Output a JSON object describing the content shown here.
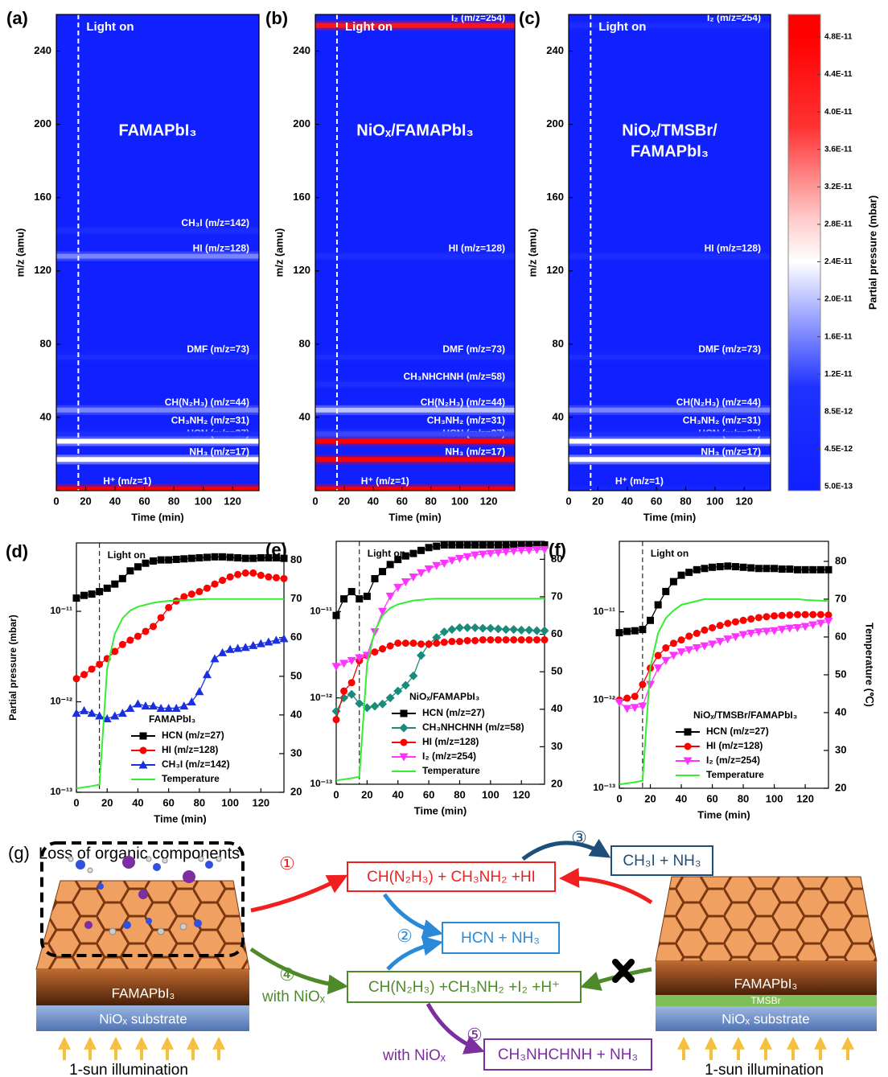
{
  "chart_data": [
    {
      "type": "heatmap",
      "panel": "(a)",
      "title_lines": [
        "FAMAPbI₃"
      ],
      "xlabel": "Time (min)",
      "ylabel": "m/z (amu)",
      "xlim": [
        0,
        138
      ],
      "xticks": [
        0,
        20,
        40,
        60,
        80,
        100,
        120
      ],
      "ylim": [
        0,
        260
      ],
      "yticks": [
        40,
        80,
        120,
        160,
        200,
        240
      ],
      "light_on": 15,
      "light_label": "Light on",
      "bands": [
        {
          "mz": 1,
          "label": "H⁺ (m/z=1)",
          "pressure": 4.8e-11
        },
        {
          "mz": 17,
          "label": "NH₃ (m/z=17)",
          "pressure": 2.4e-11
        },
        {
          "mz": 27,
          "label": "HCN  (m/z=27)",
          "pressure": 2.4e-11
        },
        {
          "mz": 31,
          "label": "CH₃NH₂ (m/z=31)",
          "pressure": 8.5e-12
        },
        {
          "mz": 44,
          "label": "CH(N₂H₃) (m/z=44)",
          "pressure": 1.6e-11
        },
        {
          "mz": 73,
          "label": "DMF (m/z=73)",
          "pressure": 8.5e-12
        },
        {
          "mz": 128,
          "label": "HI (m/z=128)",
          "pressure": 1.6e-11
        },
        {
          "mz": 142,
          "label": "CH₃I (m/z=142)",
          "pressure": 8.5e-12
        }
      ]
    },
    {
      "type": "heatmap",
      "panel": "(b)",
      "title_lines": [
        "NiOₓ/FAMAPbI₃"
      ],
      "xlabel": "Time (min)",
      "ylabel": "m/z (amu)",
      "xlim": [
        0,
        138
      ],
      "xticks": [
        0,
        20,
        40,
        60,
        80,
        100,
        120
      ],
      "ylim": [
        0,
        260
      ],
      "yticks": [
        40,
        80,
        120,
        160,
        200,
        240
      ],
      "light_on": 15,
      "light_label": "Light on",
      "bands": [
        {
          "mz": 1,
          "label": "H⁺ (m/z=1)",
          "pressure": 4.8e-11
        },
        {
          "mz": 17,
          "label": "NH₃ (m/z=17)",
          "pressure": 4.8e-11
        },
        {
          "mz": 27,
          "label": "HCN (m/z=27)",
          "pressure": 4.8e-11
        },
        {
          "mz": 31,
          "label": "CH₃NH₂ (m/z=31)",
          "pressure": 1.2e-11
        },
        {
          "mz": 44,
          "label": "CH(N₂H₃) (m/z=44)",
          "pressure": 2e-11
        },
        {
          "mz": 58,
          "label": "CH₃NHCHNH (m/z=58)",
          "pressure": 8.5e-12
        },
        {
          "mz": 73,
          "label": "DMF (m/z=73)",
          "pressure": 8.5e-12
        },
        {
          "mz": 128,
          "label": "HI (m/z=128)",
          "pressure": 8.5e-12
        },
        {
          "mz": 254,
          "label": "I₂ (m/z=254)",
          "pressure": 4.4e-11
        }
      ]
    },
    {
      "type": "heatmap",
      "panel": "(c)",
      "title_lines": [
        "NiOₓ/TMSBr/",
        "FAMAPbI₃"
      ],
      "xlabel": "Time (min)",
      "ylabel": "m/z (amu)",
      "xlim": [
        0,
        138
      ],
      "xticks": [
        0,
        20,
        40,
        60,
        80,
        100,
        120
      ],
      "ylim": [
        0,
        260
      ],
      "yticks": [
        40,
        80,
        120,
        160,
        200,
        240
      ],
      "light_on": 15,
      "light_label": "Light on",
      "bands": [
        {
          "mz": 1,
          "label": "H⁺ (m/z=1)",
          "pressure": 4.5e-12
        },
        {
          "mz": 17,
          "label": "NH₃ (m/z=17)",
          "pressure": 2.4e-11
        },
        {
          "mz": 27,
          "label": "HCN (m/z=27)",
          "pressure": 2.4e-11
        },
        {
          "mz": 31,
          "label": "CH₃NH₂ (m/z=31)",
          "pressure": 8.5e-12
        },
        {
          "mz": 44,
          "label": "CH(N₂H₃) (m/z=44)",
          "pressure": 1.6e-11
        },
        {
          "mz": 73,
          "label": "DMF (m/z=73)",
          "pressure": 8.5e-12
        },
        {
          "mz": 128,
          "label": "HI (m/z=128)",
          "pressure": 8.5e-12
        },
        {
          "mz": 254,
          "label": "I₂ (m/z=254)",
          "pressure": 8.5e-12
        }
      ]
    },
    {
      "type": "colorbar",
      "label": "Partial pressure (mbar)",
      "ticks": [
        {
          "value": 5e-13,
          "label": "5.0E-13"
        },
        {
          "value": 4.5e-12,
          "label": "4.5E-12"
        },
        {
          "value": 8.5e-12,
          "label": "8.5E-12"
        },
        {
          "value": 1.2e-11,
          "label": "1.2E-11"
        },
        {
          "value": 1.6e-11,
          "label": "1.6E-11"
        },
        {
          "value": 2e-11,
          "label": "2.0E-11"
        },
        {
          "value": 2.4e-11,
          "label": "2.4E-11"
        },
        {
          "value": 2.8e-11,
          "label": "2.8E-11"
        },
        {
          "value": 3.2e-11,
          "label": "3.2E-11"
        },
        {
          "value": 3.6e-11,
          "label": "3.6E-11"
        },
        {
          "value": 4e-11,
          "label": "4.0E-11"
        },
        {
          "value": 4.4e-11,
          "label": "4.4E-11"
        },
        {
          "value": 4.8e-11,
          "label": "4.8E-11"
        }
      ]
    },
    {
      "type": "line",
      "panel": "(d)",
      "legend_title": "FAMAPbI₃",
      "legend": "lower right",
      "log_y": true,
      "xlabel": "Time (min)",
      "ylabel": "Partial pressure (mbar)",
      "xlim": [
        0,
        135
      ],
      "xticks": [
        0,
        20,
        40,
        60,
        80,
        100,
        120
      ],
      "ylim": [
        1e-13,
        5.7e-11
      ],
      "yticks": [
        {
          "value": 1e-13,
          "label": "10⁻¹³"
        },
        {
          "value": 1e-12,
          "label": "10⁻¹²"
        },
        {
          "value": 1e-11,
          "label": "10⁻¹¹"
        }
      ],
      "y2lim": [
        20,
        84.5
      ],
      "y2ticks": [
        20,
        30,
        40,
        50,
        60,
        70,
        80
      ],
      "light_on": 15,
      "light_label": "Light on",
      "x": [
        0,
        5,
        10,
        15,
        20,
        25,
        30,
        35,
        40,
        45,
        50,
        55,
        60,
        65,
        70,
        75,
        80,
        85,
        90,
        95,
        100,
        105,
        110,
        115,
        120,
        125,
        130,
        135
      ],
      "series": [
        {
          "name": "HCN (m/z=27)",
          "color": "#000000",
          "marker": "square",
          "values": [
            1.4e-11,
            1.5e-11,
            1.55e-11,
            1.65e-11,
            1.8e-11,
            2e-11,
            2.3e-11,
            2.8e-11,
            3.1e-11,
            3.4e-11,
            3.6e-11,
            3.7e-11,
            3.7e-11,
            3.75e-11,
            3.8e-11,
            3.85e-11,
            3.9e-11,
            3.95e-11,
            4e-11,
            4e-11,
            3.95e-11,
            3.9e-11,
            3.85e-11,
            3.85e-11,
            3.9e-11,
            3.9e-11,
            3.9e-11,
            3.85e-11
          ]
        },
        {
          "name": "HI (m/z=128)",
          "color": "#ff0000",
          "marker": "circle",
          "values": [
            1.8e-12,
            2e-12,
            2.3e-12,
            2.6e-12,
            3e-12,
            3.6e-12,
            4.3e-12,
            4.8e-12,
            5.3e-12,
            6e-12,
            6.8e-12,
            8.5e-12,
            1.1e-11,
            1.3e-11,
            1.45e-11,
            1.55e-11,
            1.65e-11,
            1.8e-11,
            2e-11,
            2.2e-11,
            2.4e-11,
            2.55e-11,
            2.65e-11,
            2.65e-11,
            2.5e-11,
            2.4e-11,
            2.35e-11,
            2.3e-11
          ]
        },
        {
          "name": "CH₃I (m/z=142)",
          "color": "#1a2fe0",
          "marker": "triangle-up",
          "values": [
            7.5e-13,
            8e-13,
            7.5e-13,
            7e-13,
            6.5e-13,
            7e-13,
            7.5e-13,
            8.5e-13,
            9.5e-13,
            9e-13,
            9e-13,
            8.5e-13,
            8.5e-13,
            8.5e-13,
            9e-13,
            1e-12,
            1.3e-12,
            2e-12,
            3e-12,
            3.5e-12,
            3.8e-12,
            3.9e-12,
            4e-12,
            4.2e-12,
            4.4e-12,
            4.6e-12,
            4.8e-12,
            5e-12
          ]
        },
        {
          "name": "Temperature",
          "color": "#33ee33",
          "marker": "none",
          "axis": "y2",
          "values": [
            21,
            21.3,
            21.6,
            22,
            52,
            61,
            65,
            67,
            68,
            68.5,
            69,
            69.3,
            69.5,
            69.6,
            69.7,
            69.8,
            69.9,
            70,
            70,
            70,
            70,
            70,
            70,
            70,
            70,
            70,
            70,
            70
          ]
        }
      ]
    },
    {
      "type": "line",
      "panel": "(e)",
      "legend_title": "NiOₓ/FAMAPbI₃",
      "legend": "lower right",
      "log_y": true,
      "xlabel": "Time (min)",
      "xlim": [
        0,
        135
      ],
      "xticks": [
        0,
        20,
        40,
        60,
        80,
        100,
        120
      ],
      "ylim": [
        1e-13,
        6.5e-11
      ],
      "yticks": [
        {
          "value": 1e-13,
          "label": "10⁻¹³"
        },
        {
          "value": 1e-12,
          "label": "10⁻¹²"
        },
        {
          "value": 1e-11,
          "label": "10⁻¹¹"
        }
      ],
      "y2lim": [
        20,
        84.8
      ],
      "y2ticks": [
        20,
        30,
        40,
        50,
        60,
        70,
        80
      ],
      "light_on": 15,
      "light_label": "Light on",
      "x": [
        0,
        5,
        10,
        15,
        20,
        25,
        30,
        35,
        40,
        45,
        50,
        55,
        60,
        65,
        70,
        75,
        80,
        85,
        90,
        95,
        100,
        105,
        110,
        115,
        120,
        125,
        130,
        135
      ],
      "series": [
        {
          "name": "HCN (m/z=27)",
          "color": "#000000",
          "marker": "square",
          "values": [
            9e-12,
            1.4e-11,
            1.7e-11,
            1.4e-11,
            1.5e-11,
            2.4e-11,
            2.9e-11,
            3.5e-11,
            4e-11,
            4.4e-11,
            4.7e-11,
            5.1e-11,
            5.5e-11,
            5.7e-11,
            5.9e-11,
            5.9e-11,
            5.9e-11,
            5.9e-11,
            5.9e-11,
            5.9e-11,
            5.9e-11,
            5.9e-11,
            5.9e-11,
            5.9e-11,
            5.9e-11,
            5.9e-11,
            5.9e-11,
            5.9e-11
          ]
        },
        {
          "name": "CH₃NHCHNH (m/z=58)",
          "color": "#1a8a7a",
          "marker": "diamond",
          "values": [
            7e-13,
            1e-12,
            1.1e-12,
            8.6e-13,
            7.7e-13,
            8e-13,
            8.5e-13,
            1e-12,
            1.2e-12,
            1.4e-12,
            1.8e-12,
            3.1e-12,
            4.2e-12,
            5e-12,
            5.8e-12,
            6.2e-12,
            6.5e-12,
            6.5e-12,
            6.5e-12,
            6.4e-12,
            6.4e-12,
            6.3e-12,
            6.2e-12,
            6.2e-12,
            6.1e-12,
            6.1e-12,
            6e-12,
            6e-12
          ]
        },
        {
          "name": "HI (m/z=128)",
          "color": "#ff0000",
          "marker": "circle",
          "values": [
            5.6e-13,
            1.2e-12,
            1.5e-12,
            2.7e-12,
            3.1e-12,
            3.4e-12,
            3.7e-12,
            4e-12,
            4.3e-12,
            4.3e-12,
            4.3e-12,
            4.2e-12,
            4.2e-12,
            4.3e-12,
            4.4e-12,
            4.5e-12,
            4.5e-12,
            4.6e-12,
            4.6e-12,
            4.7e-12,
            4.7e-12,
            4.7e-12,
            4.7e-12,
            4.7e-12,
            4.7e-12,
            4.7e-12,
            4.7e-12,
            4.7e-12
          ]
        },
        {
          "name": "I₂ (m/z=254)",
          "color": "#ff33ff",
          "marker": "triangle-down",
          "values": [
            2.3e-12,
            2.5e-12,
            2.7e-12,
            2.9e-12,
            3.1e-12,
            5.8e-12,
            1e-11,
            1.5e-11,
            1.9e-11,
            2.2e-11,
            2.5e-11,
            2.8e-11,
            3.1e-11,
            3.4e-11,
            3.6e-11,
            3.9e-11,
            4.1e-11,
            4.3e-11,
            4.5e-11,
            4.6e-11,
            4.7e-11,
            4.8e-11,
            4.9e-11,
            5e-11,
            5.1e-11,
            5.1e-11,
            5.2e-11,
            5.2e-11
          ]
        },
        {
          "name": "Temperature",
          "color": "#33ee33",
          "marker": "none",
          "axis": "y2",
          "values": [
            21,
            21.3,
            21.6,
            22,
            52,
            61,
            65,
            67,
            68,
            68.5,
            69,
            69.2,
            69.4,
            69.5,
            69.5,
            69.5,
            69.5,
            69.5,
            69.5,
            69.5,
            69.5,
            69.5,
            69.5,
            69.5,
            69.5,
            69.5,
            69.5,
            69.5
          ]
        }
      ]
    },
    {
      "type": "line",
      "panel": "(f)",
      "legend_title": "NiOₓ/TMSBr/FAMAPbI₃",
      "legend": "lower right",
      "log_y": true,
      "xlabel": "Time (min)",
      "y2label": "Temperature (℃)",
      "xlim": [
        0,
        135
      ],
      "xticks": [
        0,
        20,
        40,
        60,
        80,
        100,
        120
      ],
      "ylim": [
        1e-13,
        6.3e-11
      ],
      "yticks": [
        {
          "value": 1e-13,
          "label": "10⁻¹³"
        },
        {
          "value": 1e-12,
          "label": "10⁻¹²"
        },
        {
          "value": 1e-11,
          "label": "10⁻¹¹"
        }
      ],
      "y2lim": [
        20,
        85.3
      ],
      "y2ticks": [
        20,
        30,
        40,
        50,
        60,
        70,
        80
      ],
      "light_on": 15,
      "light_label": "Light on",
      "x": [
        0,
        5,
        10,
        15,
        20,
        25,
        30,
        35,
        40,
        45,
        50,
        55,
        60,
        65,
        70,
        75,
        80,
        85,
        90,
        95,
        100,
        105,
        110,
        115,
        120,
        125,
        130,
        135
      ],
      "series": [
        {
          "name": "HCN (m/z=27)",
          "color": "#000000",
          "marker": "square",
          "values": [
            5.8e-12,
            6e-12,
            6.1e-12,
            6.3e-12,
            8e-12,
            1.2e-11,
            1.7e-11,
            2.2e-11,
            2.6e-11,
            2.8e-11,
            3e-11,
            3.1e-11,
            3.2e-11,
            3.25e-11,
            3.3e-11,
            3.25e-11,
            3.2e-11,
            3.15e-11,
            3.1e-11,
            3.1e-11,
            3.1e-11,
            3.05e-11,
            3.05e-11,
            3e-11,
            3e-11,
            3e-11,
            3e-11,
            3e-11
          ]
        },
        {
          "name": "HI (m/z=128)",
          "color": "#ff0000",
          "marker": "circle",
          "values": [
            1e-12,
            1.05e-12,
            1.1e-12,
            1.5e-12,
            2.3e-12,
            3.2e-12,
            3.9e-12,
            4.4e-12,
            4.8e-12,
            5.3e-12,
            5.7e-12,
            6.2e-12,
            6.6e-12,
            7e-12,
            7.4e-12,
            7.7e-12,
            8e-12,
            8.3e-12,
            8.6e-12,
            8.8e-12,
            9e-12,
            9.1e-12,
            9.2e-12,
            9.3e-12,
            9.3e-12,
            9.3e-12,
            9.3e-12,
            9.2e-12
          ]
        },
        {
          "name": "I₂ (m/z=254)",
          "color": "#ff33ff",
          "marker": "triangle-down",
          "values": [
            9.4e-13,
            8e-13,
            8.2e-13,
            8.5e-13,
            1.5e-12,
            2.3e-12,
            2.8e-12,
            3.2e-12,
            3.5e-12,
            3.7e-12,
            3.9e-12,
            4.1e-12,
            4.3e-12,
            4.6e-12,
            4.9e-12,
            5.2e-12,
            5.5e-12,
            5.7e-12,
            5.9e-12,
            6e-12,
            6.1e-12,
            6.3e-12,
            6.5e-12,
            6.6e-12,
            6.8e-12,
            7.1e-12,
            7.4e-12,
            7.8e-12
          ]
        },
        {
          "name": "Temperature",
          "color": "#33ee33",
          "marker": "none",
          "axis": "y2",
          "values": [
            21,
            21.3,
            21.6,
            22,
            52,
            61,
            65,
            67,
            68.5,
            69,
            69.5,
            70,
            70,
            70,
            70,
            70,
            70,
            70,
            70,
            70,
            70,
            70,
            70,
            70,
            69.8,
            69.7,
            69.6,
            69.5
          ]
        }
      ]
    }
  ],
  "diagram": {
    "panel": "(g)",
    "title": "Loss of organic components",
    "left": {
      "film": "FAMAPbI₃",
      "substrate": "NiOₓ substrate",
      "light": "1-sun illumination"
    },
    "right": {
      "film": "FAMAPbI₃",
      "interlayer": "TMSBr",
      "substrate": "NiOₓ substrate",
      "light": "1-sun illumination"
    },
    "steps": [
      {
        "mark": "①",
        "product": "CH(N₂H₃) + CH₃NH₂ +HI"
      },
      {
        "mark": "②",
        "product": "HCN + NH₃"
      },
      {
        "mark": "③",
        "product": "CH₃I + NH₃"
      },
      {
        "mark": "④",
        "condition": "with NiOₓ",
        "product": "CH(N₂H₃) +CH₃NH₂ +I₂ +H⁺"
      },
      {
        "mark": "⑤",
        "condition": "with NiOₓ",
        "product": "CH₃NHCHNH + NH₃"
      }
    ]
  }
}
